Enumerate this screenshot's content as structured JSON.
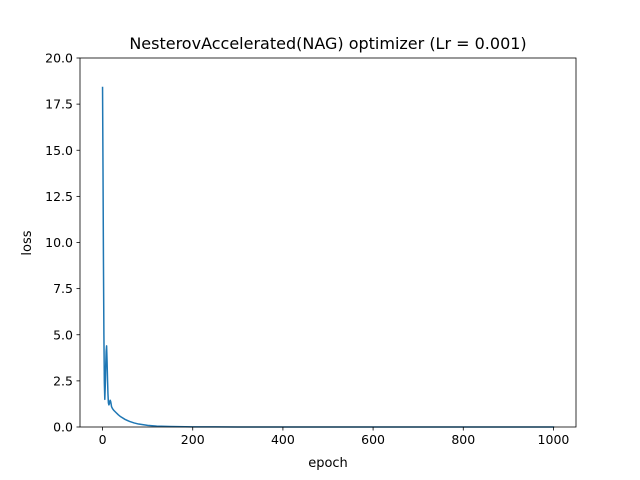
{
  "chart_data": {
    "type": "line",
    "title": "NesterovAccelerated(NAG) optimizer (Lr = 0.001)",
    "xlabel": "epoch",
    "ylabel": "loss",
    "xlim": [
      -50,
      1050
    ],
    "ylim": [
      0,
      20
    ],
    "xticks": [
      0,
      200,
      400,
      600,
      800,
      1000
    ],
    "xtick_labels": [
      "0",
      "200",
      "400",
      "600",
      "800",
      "1000"
    ],
    "yticks": [
      0,
      2.5,
      5,
      7.5,
      10,
      12.5,
      15,
      17.5,
      20
    ],
    "ytick_labels": [
      "0.0",
      "2.5",
      "5.0",
      "7.5",
      "10.0",
      "12.5",
      "15.0",
      "17.5",
      "20.0"
    ],
    "grid": false,
    "line_color": "#1f77b4",
    "series": [
      {
        "x": [
          0,
          1,
          2,
          3,
          4,
          5,
          6,
          7,
          8,
          9,
          10,
          11,
          12,
          13,
          14,
          15,
          16,
          17,
          18,
          19,
          20,
          22,
          25,
          30,
          35,
          40,
          50,
          60,
          70,
          80,
          100,
          120,
          150,
          200,
          250,
          300,
          400,
          500,
          600,
          700,
          800,
          900,
          1000
        ],
        "y": [
          18.4,
          14.0,
          9.0,
          5.0,
          2.4,
          1.5,
          2.2,
          3.3,
          4.1,
          4.4,
          3.6,
          2.6,
          1.8,
          1.3,
          1.2,
          1.25,
          1.4,
          1.45,
          1.38,
          1.25,
          1.1,
          1.0,
          0.9,
          0.78,
          0.66,
          0.56,
          0.41,
          0.3,
          0.22,
          0.16,
          0.09,
          0.05,
          0.025,
          0.008,
          0.004,
          0.002,
          0.001,
          0.0,
          0.0,
          0.0,
          0.0,
          0.0,
          0.0
        ]
      }
    ]
  }
}
